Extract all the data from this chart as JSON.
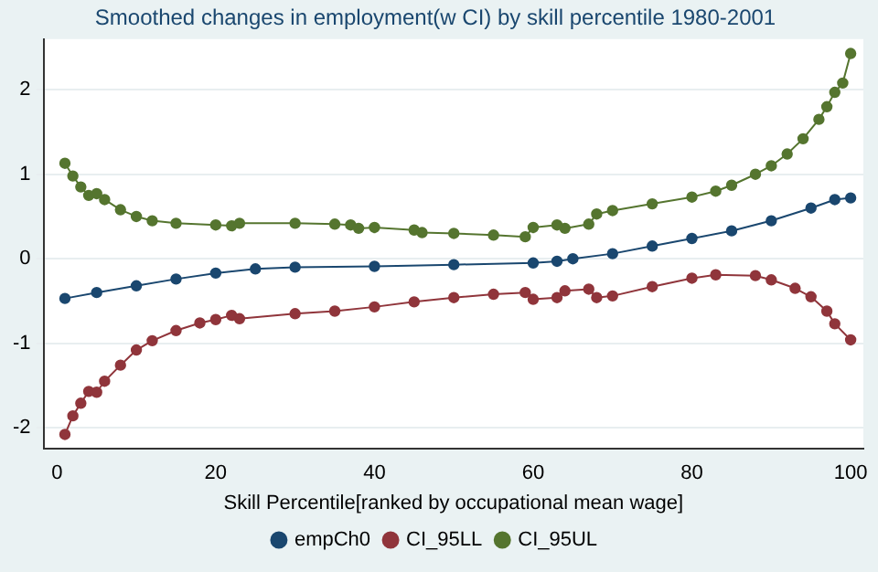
{
  "chart_data": {
    "type": "line",
    "title": "Smoothed changes in employment(w CI) by skill percentile 1980-2001",
    "xlabel": "Skill Percentile[ranked by occupational mean wage]",
    "xlim": [
      -1.7,
      101.6
    ],
    "xticks": [
      0,
      20,
      40,
      60,
      80,
      100
    ],
    "ylim": [
      -2.25,
      2.6
    ],
    "yticks": [
      -2,
      -1,
      0,
      1,
      2
    ],
    "grid": "y",
    "legend": "bottom",
    "marker": "circle",
    "series": [
      {
        "name": "empCh0",
        "color": "#1a476f",
        "x": [
          1,
          5,
          10,
          15,
          20,
          25,
          30,
          40,
          50,
          60,
          63,
          65,
          70,
          75,
          80,
          85,
          90,
          95,
          98,
          100
        ],
        "values": [
          -0.47,
          -0.4,
          -0.32,
          -0.24,
          -0.17,
          -0.12,
          -0.1,
          -0.09,
          -0.07,
          -0.05,
          -0.03,
          0.0,
          0.06,
          0.15,
          0.24,
          0.33,
          0.45,
          0.6,
          0.7,
          0.72
        ]
      },
      {
        "name": "CI_95LL",
        "color": "#90353b",
        "x": [
          1,
          2,
          3,
          4,
          5,
          6,
          8,
          10,
          12,
          15,
          18,
          20,
          22,
          23,
          30,
          35,
          40,
          45,
          50,
          55,
          59,
          60,
          63,
          64,
          67,
          68,
          70,
          75,
          80,
          83,
          88,
          90,
          93,
          95,
          97,
          98,
          100
        ],
        "values": [
          -2.08,
          -1.86,
          -1.71,
          -1.57,
          -1.58,
          -1.45,
          -1.26,
          -1.08,
          -0.97,
          -0.85,
          -0.76,
          -0.72,
          -0.67,
          -0.71,
          -0.65,
          -0.62,
          -0.57,
          -0.51,
          -0.46,
          -0.42,
          -0.4,
          -0.48,
          -0.46,
          -0.38,
          -0.36,
          -0.46,
          -0.44,
          -0.33,
          -0.23,
          -0.19,
          -0.2,
          -0.25,
          -0.35,
          -0.45,
          -0.62,
          -0.77,
          -0.96
        ]
      },
      {
        "name": "CI_95UL",
        "color": "#55752f",
        "x": [
          1,
          2,
          3,
          4,
          5,
          6,
          8,
          10,
          12,
          15,
          20,
          22,
          23,
          30,
          35,
          37,
          38,
          40,
          45,
          46,
          50,
          55,
          59,
          60,
          63,
          64,
          67,
          68,
          70,
          75,
          80,
          83,
          85,
          88,
          90,
          92,
          94,
          96,
          97,
          98,
          99,
          100
        ],
        "values": [
          1.13,
          0.98,
          0.85,
          0.75,
          0.77,
          0.7,
          0.58,
          0.5,
          0.45,
          0.42,
          0.4,
          0.39,
          0.42,
          0.42,
          0.41,
          0.4,
          0.36,
          0.37,
          0.34,
          0.31,
          0.3,
          0.28,
          0.26,
          0.37,
          0.4,
          0.36,
          0.41,
          0.53,
          0.57,
          0.65,
          0.73,
          0.8,
          0.87,
          1.0,
          1.1,
          1.24,
          1.42,
          1.65,
          1.8,
          1.97,
          2.08,
          2.43
        ]
      }
    ]
  }
}
